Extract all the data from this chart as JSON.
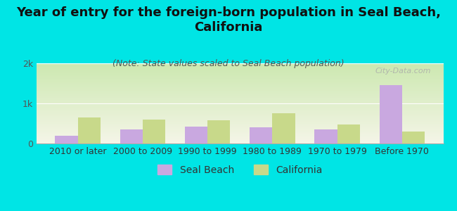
{
  "title": "Year of entry for the foreign-born population in Seal Beach,\nCalifornia",
  "subtitle": "(Note: State values scaled to Seal Beach population)",
  "categories": [
    "2010 or later",
    "2000 to 2009",
    "1990 to 1999",
    "1980 to 1989",
    "1970 to 1979",
    "Before 1970"
  ],
  "seal_beach": [
    200,
    350,
    420,
    400,
    350,
    1450
  ],
  "california": [
    650,
    600,
    580,
    750,
    480,
    300
  ],
  "seal_beach_color": "#c9a8e0",
  "california_color": "#c8d98a",
  "background_color": "#00e5e5",
  "grad_top": "#cce8b0",
  "grad_bottom": "#f5f5e8",
  "ylim": [
    0,
    2000
  ],
  "yticks": [
    0,
    1000,
    2000
  ],
  "ytick_labels": [
    "0",
    "1k",
    "2k"
  ],
  "bar_width": 0.35,
  "title_fontsize": 13,
  "subtitle_fontsize": 9,
  "tick_fontsize": 9,
  "legend_fontsize": 10,
  "watermark": "City-Data.com"
}
